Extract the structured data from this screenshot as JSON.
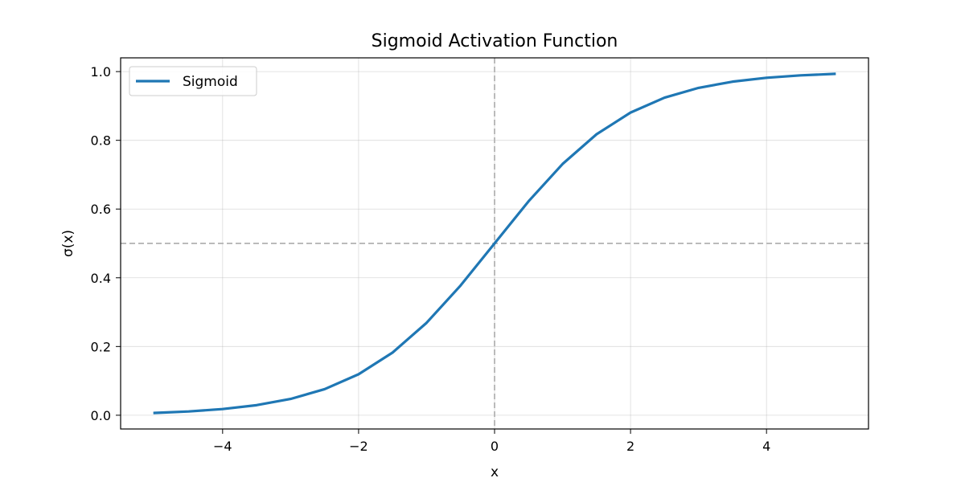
{
  "chart_data": {
    "type": "line",
    "title": "Sigmoid Activation Function",
    "xlabel": "x",
    "ylabel": "σ(x)",
    "xlim": [
      -5.5,
      5.5
    ],
    "ylim": [
      -0.04,
      1.04
    ],
    "x_ticks": [
      -4,
      -2,
      0,
      2,
      4
    ],
    "x_tick_labels": [
      "−4",
      "−2",
      "0",
      "2",
      "4"
    ],
    "y_ticks": [
      0.0,
      0.2,
      0.4,
      0.6,
      0.8,
      1.0
    ],
    "y_tick_labels": [
      "0.0",
      "0.2",
      "0.4",
      "0.6",
      "0.8",
      "1.0"
    ],
    "grid": true,
    "legend": {
      "placement": "top-left",
      "entries": [
        "Sigmoid"
      ]
    },
    "series": [
      {
        "name": "Sigmoid",
        "color": "#1f77b4",
        "x": [
          -5,
          -4.5,
          -4,
          -3.5,
          -3,
          -2.5,
          -2,
          -1.5,
          -1,
          -0.5,
          0,
          0.5,
          1,
          1.5,
          2,
          2.5,
          3,
          3.5,
          4,
          4.5,
          5
        ],
        "y": [
          0.0067,
          0.011,
          0.018,
          0.0293,
          0.0474,
          0.0759,
          0.1192,
          0.1824,
          0.2689,
          0.3775,
          0.5,
          0.6225,
          0.7311,
          0.8176,
          0.8808,
          0.9241,
          0.9526,
          0.9707,
          0.982,
          0.989,
          0.9933
        ]
      }
    ],
    "reference_lines": [
      {
        "orientation": "horizontal",
        "value": 0.5,
        "color": "#bbbbbb",
        "style": "dashed"
      },
      {
        "orientation": "vertical",
        "value": 0,
        "color": "#bbbbbb",
        "style": "dashed"
      }
    ]
  }
}
